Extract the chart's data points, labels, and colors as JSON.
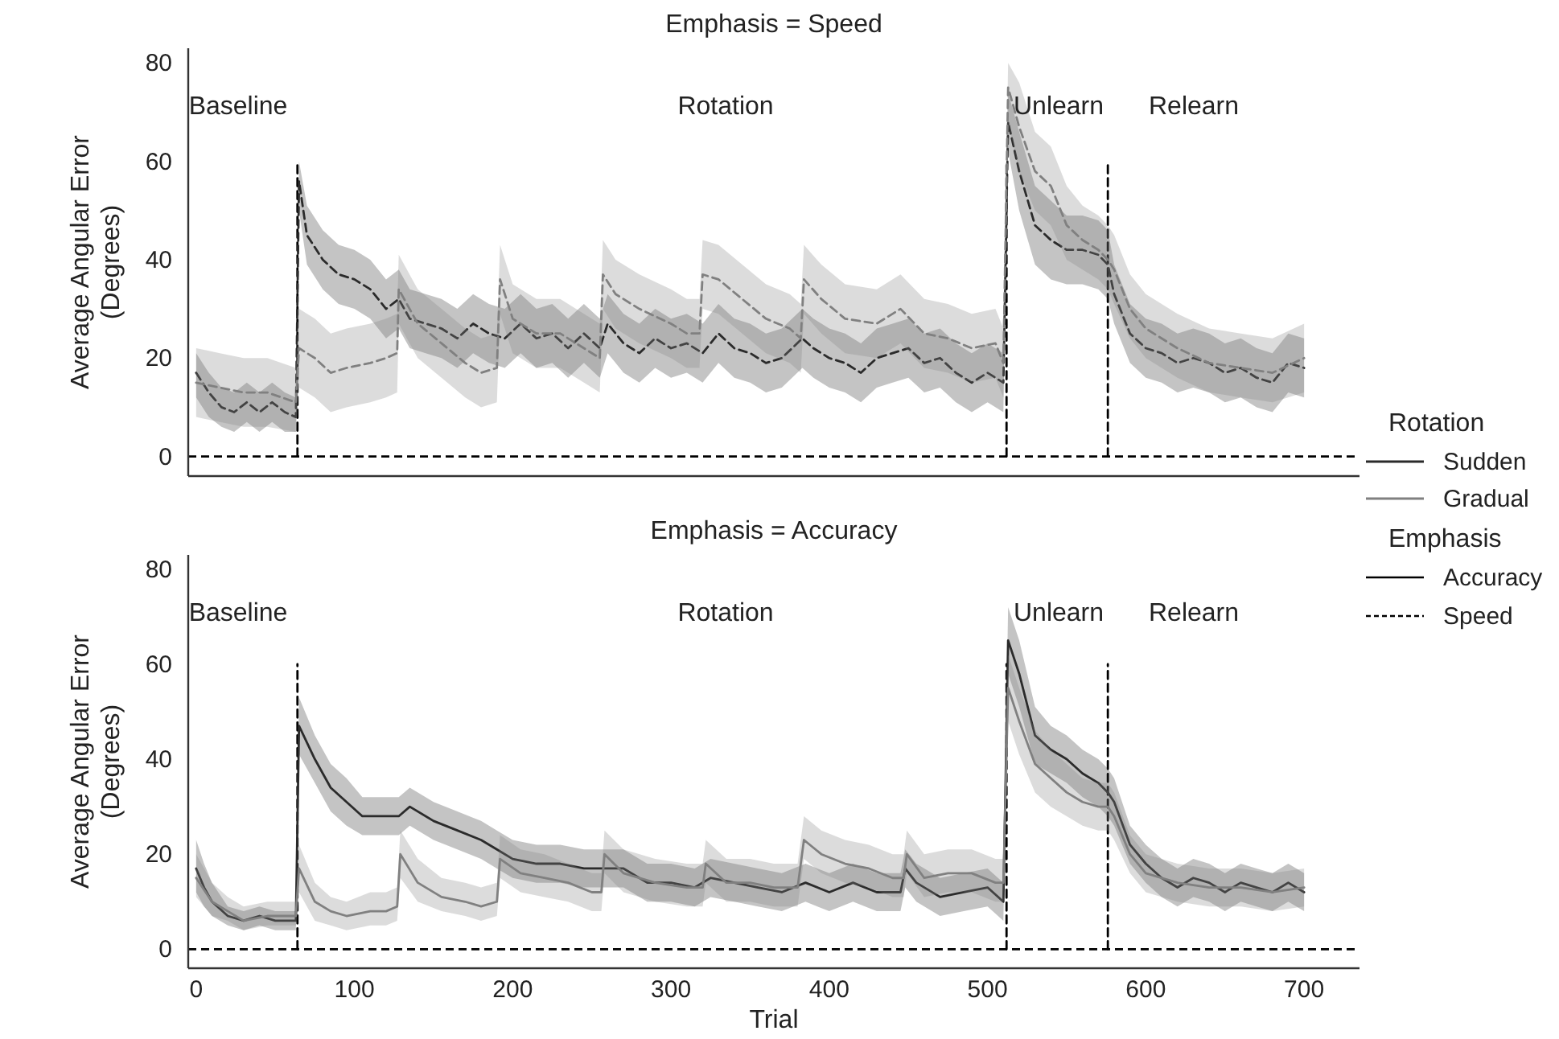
{
  "chart_data": [
    {
      "type": "line",
      "title": "Emphasis = Speed",
      "ylabel": "Average Angular Error\n(Degrees)",
      "xlim": [
        -5,
        735
      ],
      "ylim": [
        -4,
        83
      ],
      "yticks": [
        0,
        20,
        40,
        60,
        80
      ],
      "xticks": [
        0,
        100,
        200,
        300,
        400,
        500,
        600,
        700
      ],
      "tick_labels": "y",
      "grid": false,
      "legend": "right",
      "legend_title": "Rotation",
      "line_style": "dashed",
      "annotations": [
        "Baseline",
        "Rotation",
        "Unlearn",
        "Relearn"
      ],
      "ref_lines": [
        {
          "axis": "y",
          "value": 0,
          "color": "#000000",
          "line_style": "dashed"
        }
      ],
      "series": [
        {
          "type": "line",
          "color": "#000000",
          "line_style": "dashed",
          "x": [
            64,
            64
          ],
          "values": [
            0,
            60
          ]
        },
        {
          "type": "line",
          "color": "#000000",
          "line_style": "dashed",
          "x": [
            512,
            512
          ],
          "values": [
            0,
            60
          ]
        },
        {
          "type": "line",
          "color": "#000000",
          "line_style": "dashed",
          "x": [
            576,
            576
          ],
          "values": [
            0,
            60
          ]
        },
        {
          "name": "Sudden",
          "color": "#2b2b2b",
          "x": [
            0,
            8,
            16,
            24,
            32,
            40,
            48,
            56,
            63,
            65,
            70,
            80,
            90,
            100,
            110,
            120,
            128,
            135,
            145,
            155,
            165,
            175,
            185,
            195,
            205,
            215,
            225,
            235,
            245,
            255,
            260,
            270,
            280,
            290,
            300,
            310,
            320,
            330,
            340,
            350,
            360,
            370,
            383,
            390,
            400,
            410,
            420,
            430,
            440,
            450,
            460,
            470,
            480,
            490,
            500,
            510,
            513,
            520,
            530,
            540,
            550,
            560,
            570,
            576,
            580,
            590,
            600,
            610,
            620,
            630,
            640,
            650,
            660,
            670,
            680,
            690,
            700
          ],
          "values": [
            17,
            13,
            10,
            9,
            11,
            9,
            11,
            9,
            8,
            56,
            45,
            40,
            37,
            36,
            34,
            30,
            32,
            28,
            27,
            26,
            24,
            27,
            25,
            24,
            27,
            24,
            25,
            22,
            25,
            22,
            27,
            23,
            21,
            24,
            22,
            23,
            21,
            25,
            22,
            21,
            19,
            20,
            24,
            22,
            20,
            19,
            17,
            20,
            21,
            22,
            19,
            20,
            17,
            15,
            17,
            15,
            68,
            58,
            47,
            44,
            42,
            42,
            41,
            39,
            33,
            25,
            22,
            21,
            19,
            20,
            19,
            17,
            18,
            16,
            15,
            19,
            18
          ],
          "lower": [
            12,
            8,
            6,
            5,
            7,
            5,
            7,
            5,
            5,
            50,
            39,
            34,
            31,
            30,
            28,
            24,
            26,
            22,
            21,
            20,
            18,
            21,
            19,
            18,
            21,
            18,
            19,
            16,
            19,
            16,
            21,
            17,
            15,
            18,
            16,
            17,
            15,
            19,
            16,
            15,
            13,
            14,
            18,
            16,
            14,
            13,
            11,
            14,
            15,
            16,
            13,
            14,
            11,
            9,
            11,
            9,
            62,
            50,
            39,
            36,
            35,
            35,
            34,
            32,
            27,
            19,
            16,
            15,
            13,
            14,
            13,
            11,
            12,
            10,
            9,
            13,
            12
          ],
          "upper": [
            21,
            17,
            14,
            13,
            15,
            13,
            15,
            13,
            12,
            60,
            51,
            46,
            43,
            42,
            40,
            36,
            38,
            34,
            33,
            32,
            30,
            33,
            31,
            30,
            33,
            30,
            31,
            28,
            31,
            28,
            33,
            29,
            27,
            30,
            28,
            29,
            27,
            31,
            28,
            27,
            25,
            26,
            30,
            28,
            26,
            25,
            23,
            26,
            27,
            28,
            25,
            26,
            23,
            21,
            23,
            21,
            74,
            66,
            55,
            52,
            49,
            49,
            48,
            46,
            39,
            31,
            28,
            27,
            25,
            26,
            25,
            23,
            24,
            22,
            21,
            25,
            24
          ]
        },
        {
          "name": "Gradual",
          "color": "#808080",
          "x": [
            0,
            15,
            30,
            45,
            63,
            65,
            75,
            85,
            95,
            110,
            120,
            127,
            128,
            140,
            155,
            170,
            180,
            190,
            192,
            200,
            215,
            230,
            245,
            255,
            257,
            265,
            280,
            300,
            310,
            318,
            320,
            330,
            345,
            360,
            375,
            382,
            384,
            395,
            410,
            430,
            445,
            460,
            475,
            490,
            505,
            510,
            513,
            520,
            530,
            540,
            550,
            560,
            570,
            576,
            580,
            590,
            600,
            620,
            640,
            660,
            680,
            700
          ],
          "values": [
            15,
            14,
            13,
            13,
            11,
            22,
            20,
            17,
            18,
            19,
            20,
            21,
            34,
            27,
            23,
            19,
            17,
            18,
            36,
            28,
            25,
            25,
            22,
            20,
            37,
            33,
            30,
            27,
            25,
            25,
            37,
            36,
            32,
            28,
            26,
            24,
            36,
            32,
            28,
            27,
            30,
            25,
            24,
            22,
            23,
            19,
            75,
            67,
            58,
            55,
            47,
            44,
            42,
            40,
            38,
            30,
            26,
            22,
            19,
            18,
            17,
            20
          ],
          "lower": [
            8,
            7,
            6,
            6,
            5,
            14,
            12,
            9,
            10,
            11,
            12,
            13,
            27,
            20,
            16,
            12,
            10,
            11,
            29,
            21,
            18,
            18,
            15,
            13,
            30,
            26,
            23,
            20,
            18,
            18,
            30,
            29,
            25,
            21,
            19,
            17,
            29,
            25,
            21,
            20,
            23,
            18,
            17,
            15,
            16,
            12,
            68,
            58,
            50,
            47,
            40,
            38,
            36,
            34,
            31,
            24,
            20,
            16,
            13,
            12,
            11,
            13
          ],
          "upper": [
            22,
            21,
            20,
            20,
            18,
            30,
            28,
            25,
            26,
            27,
            28,
            29,
            41,
            34,
            30,
            26,
            24,
            25,
            43,
            35,
            32,
            32,
            29,
            27,
            44,
            40,
            37,
            34,
            32,
            32,
            44,
            43,
            39,
            35,
            33,
            31,
            43,
            39,
            35,
            34,
            37,
            32,
            31,
            29,
            30,
            26,
            80,
            76,
            66,
            63,
            55,
            51,
            49,
            47,
            45,
            37,
            33,
            29,
            26,
            25,
            24,
            27
          ]
        }
      ]
    },
    {
      "type": "line",
      "title": "Emphasis = Accuracy",
      "xlabel": "Trial",
      "ylabel": "Average Angular Error\n(Degrees)",
      "xlim": [
        -5,
        735
      ],
      "ylim": [
        -4,
        83
      ],
      "yticks": [
        0,
        20,
        40,
        60,
        80
      ],
      "xticks": [
        0,
        100,
        200,
        300,
        400,
        500,
        600,
        700
      ],
      "grid": false,
      "legend": "right",
      "legend_title": "Emphasis",
      "line_style": "solid",
      "annotations": [
        "Baseline",
        "Rotation",
        "Unlearn",
        "Relearn",
        "Accuracy",
        "Speed"
      ],
      "ref_lines": [
        {
          "axis": "y",
          "value": 0,
          "color": "#000000",
          "line_style": "dashed"
        }
      ],
      "series": [
        {
          "type": "line",
          "color": "#000000",
          "line_style": "dashed",
          "x": [
            64,
            64
          ],
          "values": [
            0,
            60
          ]
        },
        {
          "type": "line",
          "color": "#000000",
          "line_style": "dashed",
          "x": [
            512,
            512
          ],
          "values": [
            0,
            60
          ]
        },
        {
          "type": "line",
          "color": "#000000",
          "line_style": "dashed",
          "x": [
            576,
            576
          ],
          "values": [
            0,
            60
          ]
        },
        {
          "color": "#2b2b2b",
          "x": [
            0,
            5,
            10,
            20,
            30,
            40,
            50,
            63,
            65,
            75,
            85,
            95,
            105,
            115,
            128,
            135,
            150,
            165,
            180,
            190,
            200,
            215,
            230,
            245,
            256,
            258,
            270,
            285,
            300,
            315,
            325,
            340,
            355,
            370,
            385,
            400,
            415,
            430,
            445,
            448,
            455,
            470,
            485,
            500,
            510,
            513,
            520,
            530,
            540,
            550,
            560,
            570,
            576,
            580,
            590,
            600,
            610,
            620,
            630,
            640,
            650,
            660,
            670,
            680,
            690,
            700
          ],
          "values": [
            17,
            13,
            10,
            7,
            6,
            7,
            6,
            6,
            47,
            40,
            34,
            31,
            28,
            28,
            28,
            30,
            27,
            25,
            23,
            21,
            19,
            18,
            18,
            17,
            17,
            17,
            17,
            14,
            14,
            13,
            15,
            14,
            13,
            12,
            14,
            12,
            14,
            12,
            12,
            17,
            14,
            11,
            12,
            13,
            10,
            65,
            58,
            45,
            42,
            40,
            37,
            35,
            33,
            31,
            22,
            18,
            15,
            13,
            15,
            14,
            12,
            14,
            13,
            12,
            14,
            12
          ],
          "lower": [
            12,
            9,
            7,
            5,
            4,
            5,
            4,
            4,
            41,
            35,
            29,
            26,
            24,
            24,
            24,
            26,
            23,
            21,
            19,
            17,
            15,
            14,
            14,
            13,
            13,
            13,
            13,
            10,
            10,
            9,
            11,
            10,
            9,
            8,
            10,
            8,
            10,
            8,
            8,
            13,
            10,
            7,
            8,
            9,
            6,
            58,
            51,
            39,
            37,
            35,
            32,
            30,
            28,
            26,
            18,
            14,
            11,
            9,
            11,
            10,
            8,
            10,
            9,
            8,
            10,
            8
          ],
          "upper": [
            23,
            18,
            14,
            9,
            8,
            9,
            8,
            8,
            53,
            45,
            39,
            36,
            32,
            32,
            32,
            34,
            31,
            29,
            27,
            25,
            23,
            22,
            22,
            21,
            21,
            21,
            21,
            18,
            18,
            17,
            19,
            18,
            17,
            16,
            18,
            16,
            18,
            16,
            16,
            21,
            18,
            15,
            16,
            17,
            14,
            72,
            65,
            51,
            47,
            45,
            42,
            40,
            38,
            36,
            26,
            22,
            19,
            17,
            19,
            18,
            16,
            18,
            17,
            16,
            18,
            16
          ]
        },
        {
          "color": "#808080",
          "x": [
            0,
            10,
            20,
            30,
            45,
            63,
            65,
            75,
            85,
            95,
            110,
            120,
            127,
            129,
            140,
            155,
            170,
            180,
            190,
            192,
            205,
            220,
            235,
            250,
            256,
            258,
            270,
            290,
            310,
            320,
            322,
            335,
            350,
            365,
            380,
            384,
            395,
            410,
            425,
            440,
            447,
            449,
            460,
            475,
            490,
            505,
            510,
            513,
            520,
            530,
            540,
            550,
            560,
            570,
            576,
            580,
            590,
            600,
            620,
            640,
            660,
            680,
            700
          ],
          "values": [
            15,
            10,
            8,
            6,
            7,
            7,
            17,
            10,
            8,
            7,
            8,
            8,
            9,
            20,
            14,
            11,
            10,
            9,
            10,
            19,
            16,
            15,
            14,
            12,
            12,
            20,
            16,
            14,
            13,
            13,
            18,
            14,
            14,
            13,
            13,
            23,
            20,
            18,
            17,
            15,
            15,
            20,
            15,
            16,
            16,
            14,
            14,
            55,
            48,
            39,
            36,
            33,
            31,
            30,
            30,
            28,
            20,
            16,
            14,
            13,
            13,
            12,
            13
          ],
          "lower": [
            11,
            7,
            6,
            4,
            5,
            5,
            12,
            6,
            5,
            4,
            5,
            5,
            6,
            15,
            10,
            8,
            7,
            6,
            7,
            15,
            12,
            11,
            10,
            8,
            8,
            16,
            12,
            10,
            9,
            9,
            14,
            10,
            10,
            9,
            9,
            19,
            16,
            14,
            13,
            11,
            11,
            16,
            11,
            12,
            12,
            10,
            10,
            48,
            41,
            33,
            30,
            28,
            26,
            25,
            25,
            23,
            16,
            12,
            10,
            9,
            9,
            8,
            9
          ],
          "upper": [
            20,
            14,
            11,
            9,
            10,
            10,
            22,
            14,
            11,
            10,
            12,
            12,
            13,
            25,
            19,
            15,
            14,
            13,
            14,
            24,
            21,
            20,
            18,
            16,
            16,
            25,
            21,
            19,
            18,
            18,
            23,
            19,
            19,
            18,
            18,
            28,
            25,
            23,
            22,
            20,
            20,
            25,
            20,
            21,
            21,
            19,
            19,
            62,
            55,
            46,
            42,
            39,
            36,
            35,
            35,
            33,
            24,
            20,
            18,
            17,
            17,
            16,
            17
          ]
        }
      ]
    }
  ]
}
